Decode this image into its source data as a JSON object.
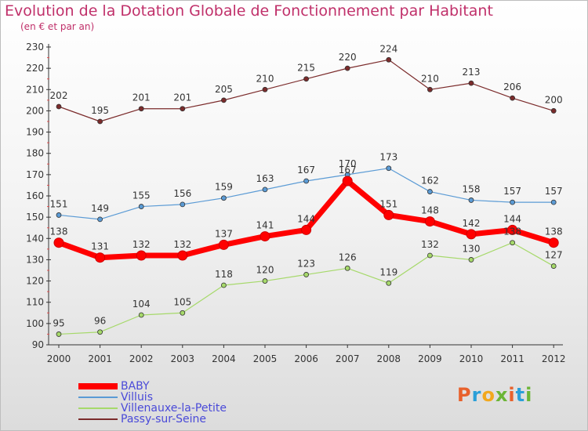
{
  "title": "Evolution de la Dotation Globale de Fonctionnement par Habitant",
  "subtitle": "(en € et par an)",
  "logo": {
    "text": "Proxiti",
    "colors": [
      "#e8612c",
      "#2a9fd8",
      "#f2a81d",
      "#6bb536",
      "#e8612c",
      "#2a9fd8",
      "#6bb536"
    ]
  },
  "chart_data": {
    "type": "line",
    "x": [
      "2000",
      "2001",
      "2002",
      "2003",
      "2004",
      "2005",
      "2006",
      "2007",
      "2008",
      "2009",
      "2010",
      "2011",
      "2012"
    ],
    "ylim": [
      90,
      230
    ],
    "yticks": [
      90,
      100,
      110,
      120,
      130,
      140,
      150,
      160,
      170,
      180,
      190,
      200,
      210,
      220,
      230
    ],
    "grid": false,
    "legend_position": "bottom-left",
    "series": [
      {
        "name": "BABY",
        "color": "#ff0000",
        "values": [
          138,
          131,
          132,
          132,
          137,
          141,
          144,
          167,
          151,
          148,
          142,
          144,
          138
        ]
      },
      {
        "name": "Villuis",
        "color": "#5b9bd5",
        "values": [
          151,
          149,
          155,
          156,
          159,
          163,
          167,
          170,
          173,
          162,
          158,
          157,
          157
        ]
      },
      {
        "name": "Villenauxe-la-Petite",
        "color": "#a6d96a",
        "values": [
          95,
          96,
          104,
          105,
          118,
          120,
          123,
          126,
          119,
          132,
          130,
          138,
          127
        ]
      },
      {
        "name": "Passy-sur-Seine",
        "color": "#7b2b2b",
        "values": [
          202,
          195,
          201,
          201,
          205,
          210,
          215,
          220,
          224,
          210,
          213,
          206,
          200
        ]
      }
    ]
  }
}
